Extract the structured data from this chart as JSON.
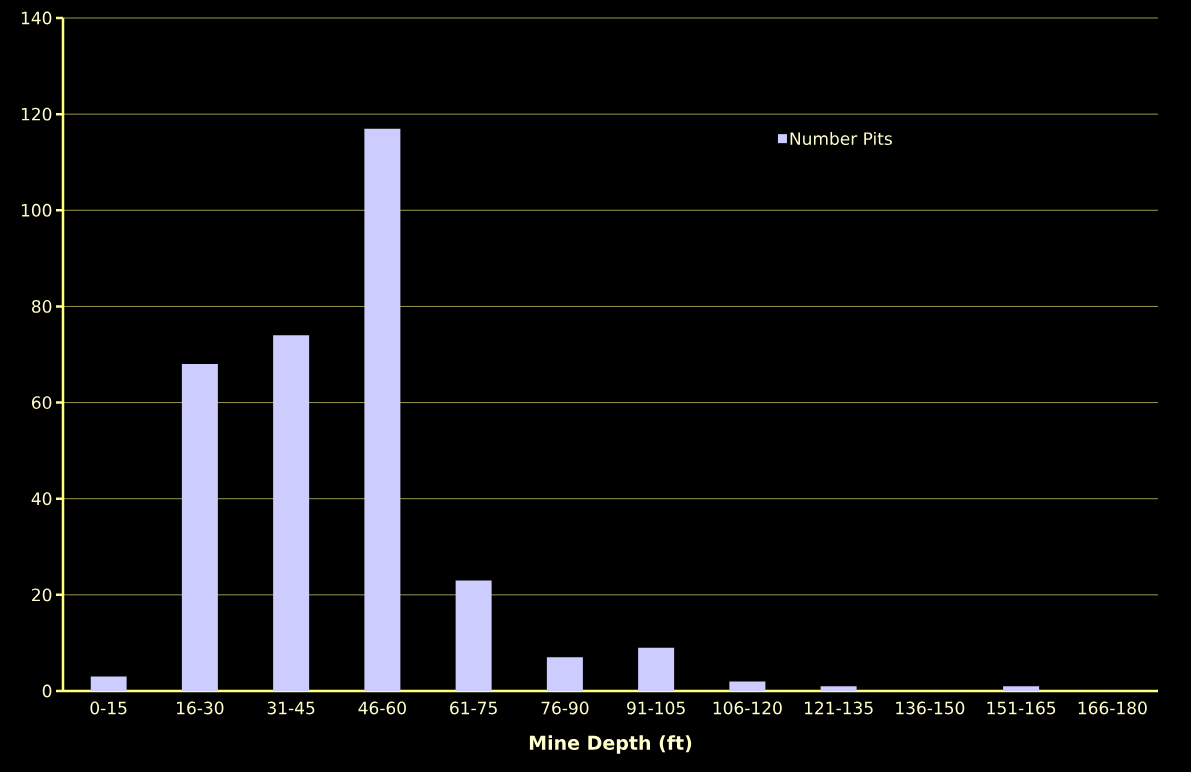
{
  "chart_data": {
    "type": "bar",
    "xlabel": "Mine Depth (ft)",
    "categories": [
      "0-15",
      "16-30",
      "31-45",
      "46-60",
      "61-75",
      "76-90",
      "91-105",
      "106-120",
      "121-135",
      "136-150",
      "151-165",
      "166-180"
    ],
    "series": [
      {
        "name": "Number Pits",
        "color": "#ccccff",
        "values": [
          3,
          68,
          74,
          117,
          23,
          7,
          9,
          2,
          1,
          0,
          1,
          0
        ]
      }
    ],
    "ylim": [
      0,
      140
    ],
    "yticks": [
      0,
      20,
      40,
      60,
      80,
      100,
      120,
      140
    ],
    "grid": "y",
    "legend": "top right"
  }
}
